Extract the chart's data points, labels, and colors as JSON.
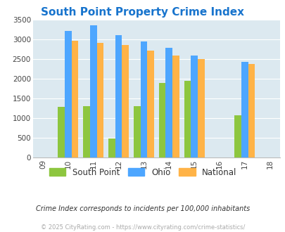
{
  "title": "South Point Property Crime Index",
  "title_color": "#1874cd",
  "years": [
    2009,
    2010,
    2011,
    2012,
    2013,
    2014,
    2015,
    2016,
    2017,
    2018
  ],
  "data_years": [
    2010,
    2011,
    2012,
    2013,
    2014,
    2015,
    2017
  ],
  "south_point": [
    1290,
    1310,
    490,
    1310,
    1900,
    1950,
    1070
  ],
  "ohio": [
    3220,
    3360,
    3100,
    2940,
    2790,
    2600,
    2430
  ],
  "national": [
    2960,
    2910,
    2860,
    2720,
    2600,
    2510,
    2370
  ],
  "south_point_color": "#8dc63f",
  "ohio_color": "#4da6ff",
  "national_color": "#ffb347",
  "bg_color": "#dce9f0",
  "ylim": [
    0,
    3500
  ],
  "yticks": [
    0,
    500,
    1000,
    1500,
    2000,
    2500,
    3000,
    3500
  ],
  "bar_width": 0.27,
  "legend_labels": [
    "South Point",
    "Ohio",
    "National"
  ],
  "footnote1": "Crime Index corresponds to incidents per 100,000 inhabitants",
  "footnote2": "© 2025 CityRating.com - https://www.cityrating.com/crime-statistics/",
  "footnote1_color": "#333333",
  "footnote2_color": "#aaaaaa"
}
